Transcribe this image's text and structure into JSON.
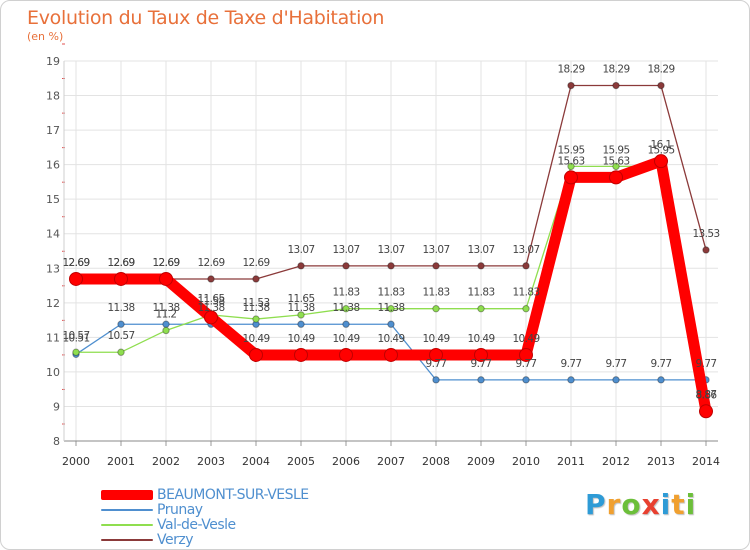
{
  "chart_data": {
    "type": "line",
    "title": "Evolution du Taux de Taxe d'Habitation",
    "subtitle": "(en %)",
    "ylim": [
      8,
      19
    ],
    "yticks": [
      "8",
      "9",
      "10",
      "11",
      "12",
      "13",
      "14",
      "15",
      "16",
      "17",
      "18",
      "19"
    ],
    "categories": [
      "2000",
      "2001",
      "2002",
      "2003",
      "2004",
      "2005",
      "2006",
      "2007",
      "2008",
      "2009",
      "2010",
      "2011",
      "2012",
      "2013",
      "2014"
    ],
    "grid": true,
    "legend_position": "bottom-left",
    "series": [
      {
        "name": "BEAUMONT-SUR-VESLE",
        "color": "#ff0000",
        "values": [
          12.69,
          12.69,
          12.69,
          11.58,
          10.49,
          10.49,
          10.49,
          10.49,
          10.49,
          10.49,
          10.49,
          15.63,
          15.63,
          16.1,
          8.86
        ],
        "labels": [
          "12.69",
          "12.69",
          "12.69",
          "11.58",
          "10.49",
          "10.49",
          "10.49",
          "10.49",
          "10.49",
          "10.49",
          "10.49",
          "15.63",
          "15.63",
          "16.1",
          "8.86"
        ]
      },
      {
        "name": "Prunay",
        "color": "#4f8fcf",
        "values": [
          10.51,
          11.38,
          11.38,
          11.38,
          11.38,
          11.38,
          11.38,
          11.38,
          9.77,
          9.77,
          9.77,
          9.77,
          9.77,
          9.77,
          9.77
        ],
        "labels": [
          "10.51",
          "11.38",
          "11.38",
          "11.38",
          "11.38",
          "11.38",
          "11.38",
          "11.38",
          "9.77",
          "9.77",
          "9.77",
          "9.77",
          "9.77",
          "9.77",
          "9.77"
        ]
      },
      {
        "name": "Val-de-Vesle",
        "color": "#8fde4f",
        "values": [
          10.57,
          10.57,
          11.2,
          11.65,
          11.53,
          11.65,
          11.83,
          11.83,
          11.83,
          11.83,
          11.83,
          15.95,
          15.95,
          15.95,
          8.87
        ],
        "labels": [
          "10.57",
          "10.57",
          "11.2",
          "11.65",
          "11.53",
          "11.65",
          "11.83",
          "11.83",
          "11.83",
          "11.83",
          "11.83",
          "15.95",
          "15.95",
          "15.95",
          "8.87"
        ]
      },
      {
        "name": "Verzy",
        "color": "#8b3a3a",
        "values": [
          12.69,
          12.69,
          12.69,
          12.69,
          12.69,
          13.07,
          13.07,
          13.07,
          13.07,
          13.07,
          13.07,
          18.29,
          18.29,
          18.29,
          13.53
        ],
        "labels": [
          "12.69",
          "12.69",
          "12.69",
          "12.69",
          "12.69",
          "13.07",
          "13.07",
          "13.07",
          "13.07",
          "13.07",
          "13.07",
          "18.29",
          "18.29",
          "18.29",
          "13.53"
        ]
      }
    ]
  },
  "brand": {
    "letters": [
      "P",
      "r",
      "o",
      "x",
      "i",
      "t",
      "i"
    ],
    "colors": [
      "#2e9bd6",
      "#f0a030",
      "#6cbf3a",
      "#e84030",
      "#2e9bd6",
      "#f0a030",
      "#6cbf3a"
    ]
  }
}
